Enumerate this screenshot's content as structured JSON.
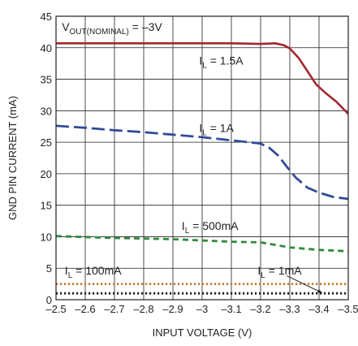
{
  "chart_data": {
    "type": "line",
    "xlabel": "INPUT VOLTAGE (V)",
    "ylabel": "GND PIN CURRENT (mA)",
    "xlim": [
      -2.5,
      -3.5
    ],
    "ylim": [
      0,
      45
    ],
    "grid": true,
    "x_ticks": [
      "–2.5",
      "–2.6",
      "–2.7",
      "–2.8",
      "–2.9",
      "–3",
      "–3.1",
      "–3.2",
      "–3.3",
      "–3.4",
      "–3.5"
    ],
    "y_ticks": [
      "0",
      "5",
      "10",
      "15",
      "20",
      "25",
      "30",
      "35",
      "40",
      "45"
    ],
    "series": [
      {
        "name": "I_L = 1.5A",
        "color": "#a3262e",
        "style": "solid",
        "points": [
          [
            -2.5,
            40.7
          ],
          [
            -2.8,
            40.7
          ],
          [
            -3.1,
            40.7
          ],
          [
            -3.2,
            40.6
          ],
          [
            -3.25,
            40.7
          ],
          [
            -3.28,
            40.4
          ],
          [
            -3.3,
            39.9
          ],
          [
            -3.33,
            38.4
          ],
          [
            -3.36,
            36.3
          ],
          [
            -3.39,
            34.2
          ],
          [
            -3.42,
            32.9
          ],
          [
            -3.46,
            31.4
          ],
          [
            -3.5,
            29.5
          ]
        ]
      },
      {
        "name": "I_L = 1A",
        "color": "#2f4b9a",
        "style": "longdash",
        "points": [
          [
            -2.5,
            27.6
          ],
          [
            -2.6,
            27.3
          ],
          [
            -2.7,
            26.9
          ],
          [
            -2.8,
            26.6
          ],
          [
            -2.9,
            26.2
          ],
          [
            -3.0,
            25.8
          ],
          [
            -3.1,
            25.3
          ],
          [
            -3.2,
            24.8
          ],
          [
            -3.23,
            24.1
          ],
          [
            -3.26,
            22.9
          ],
          [
            -3.29,
            21.1
          ],
          [
            -3.32,
            19.4
          ],
          [
            -3.36,
            17.8
          ],
          [
            -3.4,
            17.0
          ],
          [
            -3.45,
            16.3
          ],
          [
            -3.5,
            16.0
          ]
        ]
      },
      {
        "name": "I_L = 500mA",
        "color": "#2e8b3e",
        "style": "shortdash",
        "points": [
          [
            -2.5,
            10.1
          ],
          [
            -2.7,
            9.8
          ],
          [
            -2.9,
            9.6
          ],
          [
            -3.1,
            9.2
          ],
          [
            -3.2,
            9.1
          ],
          [
            -3.25,
            8.7
          ],
          [
            -3.3,
            8.3
          ],
          [
            -3.4,
            7.9
          ],
          [
            -3.5,
            7.7
          ]
        ]
      },
      {
        "name": "I_L = 100mA",
        "color": "#c07a2e",
        "style": "dotted",
        "points": [
          [
            -2.5,
            2.5
          ],
          [
            -3.5,
            2.5
          ]
        ]
      },
      {
        "name": "I_L = 1mA",
        "color": "#231f20",
        "style": "dotted",
        "points": [
          [
            -2.5,
            1.0
          ],
          [
            -3.5,
            1.0
          ]
        ]
      }
    ],
    "annotations": [
      {
        "main": "V",
        "sub": "OUT(NOMINAL)",
        "rest": " = –3V",
        "x": -2.52,
        "y": 42.7
      },
      {
        "main": "I",
        "sub": "L",
        "rest": " = 1.5A",
        "x": -2.99,
        "y": 37.3
      },
      {
        "main": "I",
        "sub": "L",
        "rest": " = 1A",
        "x": -2.99,
        "y": 26.6
      },
      {
        "main": "I",
        "sub": "L",
        "rest": " = 500mA",
        "x": -2.93,
        "y": 11.1
      },
      {
        "main": "I",
        "sub": "L",
        "rest": " = 100mA",
        "x": -2.53,
        "y": 4.0
      },
      {
        "main": "I",
        "sub": "L",
        "rest": " = 1mA",
        "x": -3.19,
        "y": 4.0
      }
    ],
    "arrow": {
      "from": [
        -3.29,
        3.8
      ],
      "to": [
        -3.41,
        1.1
      ]
    }
  }
}
